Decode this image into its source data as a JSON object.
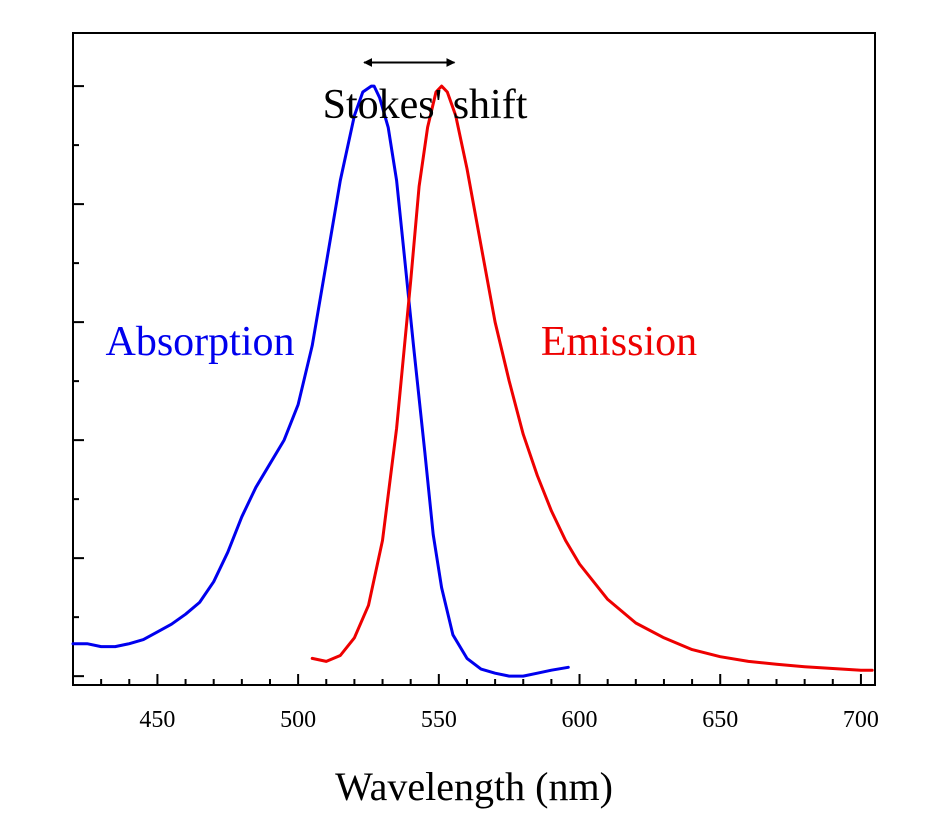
{
  "chart_data": {
    "type": "line",
    "xlabel": "Wavelength (nm)",
    "ylabel": "",
    "xlim": [
      420,
      705
    ],
    "ylim": [
      -0.015,
      1.09
    ],
    "x_ticks": [
      450,
      500,
      550,
      600,
      650,
      700
    ],
    "grid": false,
    "legend": "none",
    "annotations": {
      "stokes": {
        "text": "Stokes' shift",
        "from_x": 527,
        "to_x": 552,
        "y": 1.04
      },
      "absorption": {
        "text": "Absorption",
        "color": "#0000ee"
      },
      "emission": {
        "text": "Emission",
        "color": "#ee0000"
      }
    },
    "series": [
      {
        "color": "#0000ee",
        "x": [
          420,
          425,
          430,
          435,
          440,
          445,
          450,
          455,
          460,
          465,
          470,
          475,
          480,
          485,
          490,
          495,
          500,
          505,
          510,
          515,
          520,
          523,
          526,
          527,
          529,
          532,
          535,
          538,
          541,
          545,
          548,
          551,
          555,
          560,
          565,
          570,
          575,
          580,
          585,
          590,
          596
        ],
        "y": [
          0.055,
          0.055,
          0.05,
          0.05,
          0.055,
          0.062,
          0.075,
          0.088,
          0.105,
          0.125,
          0.16,
          0.21,
          0.27,
          0.32,
          0.36,
          0.4,
          0.46,
          0.56,
          0.7,
          0.84,
          0.95,
          0.99,
          1.0,
          1.0,
          0.98,
          0.93,
          0.84,
          0.7,
          0.56,
          0.38,
          0.24,
          0.15,
          0.07,
          0.03,
          0.012,
          0.005,
          0.0,
          0.0,
          0.005,
          0.01,
          0.015
        ]
      },
      {
        "color": "#ee0000",
        "x": [
          505,
          510,
          515,
          520,
          525,
          530,
          535,
          540,
          543,
          546,
          549,
          551,
          553,
          556,
          560,
          565,
          570,
          575,
          580,
          585,
          590,
          595,
          600,
          610,
          620,
          630,
          640,
          650,
          660,
          670,
          680,
          690,
          700,
          704
        ],
        "y": [
          0.03,
          0.025,
          0.035,
          0.065,
          0.12,
          0.23,
          0.42,
          0.67,
          0.83,
          0.93,
          0.99,
          1.0,
          0.99,
          0.95,
          0.86,
          0.73,
          0.6,
          0.5,
          0.41,
          0.34,
          0.28,
          0.23,
          0.19,
          0.13,
          0.09,
          0.065,
          0.045,
          0.033,
          0.025,
          0.02,
          0.016,
          0.013,
          0.01,
          0.01
        ]
      }
    ]
  }
}
